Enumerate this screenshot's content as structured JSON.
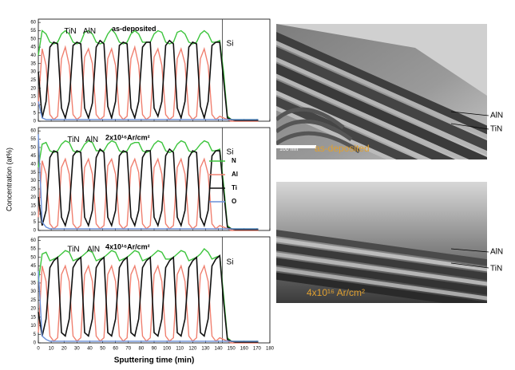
{
  "chart_data": [
    {
      "type": "line",
      "title": "as-deposited",
      "annotations": [
        "TiN",
        "AlN",
        "Si"
      ],
      "x": [
        0,
        3,
        6,
        9,
        12,
        15,
        18,
        21,
        24,
        27,
        30,
        33,
        36,
        39,
        42,
        45,
        48,
        51,
        54,
        57,
        60,
        63,
        66,
        69,
        72,
        75,
        78,
        81,
        84,
        87,
        90,
        93,
        96,
        99,
        102,
        105,
        108,
        111,
        114,
        117,
        120,
        123,
        126,
        129,
        132,
        135,
        138,
        141,
        144,
        147,
        150,
        153,
        156,
        159,
        162,
        165,
        168,
        171
      ],
      "xlim": [
        0,
        180
      ],
      "xticks": [
        0,
        10,
        20,
        30,
        40,
        50,
        60,
        70,
        80,
        90,
        100,
        110,
        120,
        130,
        140,
        150,
        160,
        170,
        180
      ],
      "ylim": [
        0,
        62
      ],
      "yticks": [
        0,
        5,
        10,
        15,
        20,
        25,
        30,
        35,
        40,
        45,
        50,
        55,
        60
      ],
      "series": [
        {
          "name": "N",
          "color": "#3cc43c",
          "values": [
            40,
            55,
            53,
            48,
            47,
            48,
            53,
            55,
            53,
            48,
            47,
            48,
            54,
            55,
            53,
            48,
            47,
            48,
            53,
            56,
            53,
            48,
            47,
            48,
            53,
            55,
            53,
            48,
            48,
            48,
            53,
            55,
            54,
            48,
            47,
            48,
            54,
            55,
            53,
            48,
            47,
            48,
            53,
            55,
            53,
            48,
            48,
            49,
            30,
            3,
            1,
            1,
            1,
            1,
            1,
            1,
            1,
            1
          ]
        },
        {
          "name": "Al",
          "color": "#f08070",
          "values": [
            10,
            44,
            34,
            4,
            1,
            3,
            38,
            45,
            34,
            4,
            1,
            3,
            39,
            44,
            35,
            4,
            1,
            3,
            38,
            44,
            34,
            4,
            1,
            3,
            38,
            45,
            34,
            4,
            1,
            3,
            39,
            44,
            34,
            4,
            1,
            3,
            38,
            44,
            35,
            4,
            1,
            3,
            38,
            44,
            34,
            4,
            1,
            3,
            2,
            1,
            0,
            0,
            0,
            0,
            0,
            0,
            0,
            0
          ]
        },
        {
          "name": "Ti",
          "color": "#111111",
          "values": [
            30,
            2,
            12,
            45,
            48,
            47,
            8,
            2,
            12,
            46,
            48,
            47,
            8,
            2,
            11,
            45,
            49,
            47,
            9,
            2,
            12,
            46,
            48,
            47,
            8,
            2,
            12,
            45,
            48,
            48,
            8,
            3,
            12,
            46,
            49,
            47,
            8,
            2,
            12,
            45,
            48,
            47,
            9,
            2,
            12,
            46,
            48,
            48,
            25,
            2,
            1,
            0.5,
            0.5,
            0.5,
            0.5,
            0.5,
            0.5,
            0.5
          ]
        },
        {
          "name": "O",
          "color": "#6a8fd8",
          "values": [
            12,
            2,
            1,
            1,
            1,
            1,
            1,
            1,
            1,
            1,
            1,
            1,
            1,
            1,
            1,
            1,
            1,
            1,
            1,
            1,
            1,
            1,
            1,
            1,
            1,
            1,
            1,
            1,
            1,
            1,
            1,
            1,
            1,
            1,
            1,
            1,
            1,
            1,
            1,
            1,
            1,
            1,
            1,
            1,
            1,
            1,
            1,
            1,
            1,
            1,
            1,
            1,
            1,
            1,
            1,
            1,
            1,
            1
          ]
        }
      ]
    },
    {
      "type": "line",
      "title": "2x10¹⁶Ar/cm²",
      "annotations": [
        "TiN",
        "AlN",
        "Si"
      ],
      "ylabel": "Concentration (at%)",
      "legend": "right",
      "x": [
        0,
        3,
        6,
        9,
        12,
        15,
        18,
        21,
        24,
        27,
        30,
        33,
        36,
        39,
        42,
        45,
        48,
        51,
        54,
        57,
        60,
        63,
        66,
        69,
        72,
        75,
        78,
        81,
        84,
        87,
        90,
        93,
        96,
        99,
        102,
        105,
        108,
        111,
        114,
        117,
        120,
        123,
        126,
        129,
        132,
        135,
        138,
        141,
        144,
        147,
        150,
        153,
        156,
        159,
        162,
        165,
        168,
        171
      ],
      "xlim": [
        0,
        180
      ],
      "xticks": [
        0,
        10,
        20,
        30,
        40,
        50,
        60,
        70,
        80,
        90,
        100,
        110,
        120,
        130,
        140,
        150,
        160,
        170,
        180
      ],
      "ylim": [
        0,
        62
      ],
      "yticks": [
        0,
        5,
        10,
        15,
        20,
        25,
        30,
        35,
        40,
        45,
        50,
        55,
        60
      ],
      "series": [
        {
          "name": "N",
          "color": "#3cc43c",
          "values": [
            38,
            52,
            53,
            48,
            47,
            48,
            52,
            54,
            53,
            48,
            47,
            48,
            52,
            54,
            53,
            48,
            48,
            48,
            52,
            54,
            53,
            48,
            47,
            48,
            52,
            53,
            53,
            48,
            47,
            48,
            52,
            54,
            53,
            48,
            47,
            48,
            52,
            54,
            53,
            48,
            47,
            49,
            52,
            54,
            53,
            48,
            48,
            49,
            28,
            3,
            1,
            1,
            1,
            1,
            1,
            1,
            1,
            1
          ]
        },
        {
          "name": "Al",
          "color": "#f08070",
          "values": [
            8,
            42,
            34,
            4,
            1,
            3,
            38,
            43,
            34,
            4,
            1,
            3,
            38,
            43,
            34,
            4,
            1,
            3,
            39,
            43,
            34,
            4,
            1,
            3,
            38,
            43,
            35,
            4,
            1,
            3,
            38,
            43,
            34,
            4,
            1,
            3,
            38,
            43,
            34,
            4,
            1,
            3,
            38,
            43,
            34,
            4,
            1,
            3,
            2,
            1,
            0,
            0,
            0,
            0,
            0,
            0,
            0,
            0
          ]
        },
        {
          "name": "Ti",
          "color": "#111111",
          "values": [
            20,
            3,
            12,
            44,
            48,
            47,
            8,
            3,
            12,
            45,
            48,
            47,
            8,
            3,
            12,
            44,
            49,
            47,
            8,
            3,
            12,
            45,
            48,
            47,
            8,
            3,
            12,
            44,
            48,
            48,
            8,
            3,
            12,
            45,
            49,
            47,
            8,
            3,
            12,
            44,
            48,
            47,
            8,
            3,
            12,
            45,
            48,
            48,
            24,
            2,
            1,
            0.5,
            0.5,
            0.5,
            0.5,
            0.5,
            0.5,
            0.5
          ]
        },
        {
          "name": "O",
          "color": "#6a8fd8",
          "values": [
            58,
            5,
            2,
            1,
            1,
            1,
            1,
            1,
            1,
            1,
            1,
            1,
            1,
            1,
            1,
            1,
            1,
            1,
            1,
            1,
            1,
            1,
            1,
            1,
            1,
            1,
            1,
            1,
            1,
            1,
            1,
            1,
            1,
            1,
            1,
            1,
            1,
            1,
            1,
            1,
            1,
            1,
            1,
            1,
            1,
            1,
            1,
            1,
            1,
            1,
            1,
            1,
            1,
            1,
            1,
            1,
            1,
            1
          ]
        }
      ]
    },
    {
      "type": "line",
      "title": "4x10¹⁶Ar/cm²",
      "annotations": [
        "TiN",
        "AlN",
        "Si"
      ],
      "xlabel": "Sputtering time (min)",
      "x": [
        0,
        3,
        6,
        9,
        12,
        15,
        18,
        21,
        24,
        27,
        30,
        33,
        36,
        39,
        42,
        45,
        48,
        51,
        54,
        57,
        60,
        63,
        66,
        69,
        72,
        75,
        78,
        81,
        84,
        87,
        90,
        93,
        96,
        99,
        102,
        105,
        108,
        111,
        114,
        117,
        120,
        123,
        126,
        129,
        132,
        135,
        138,
        141,
        144,
        147,
        150,
        153,
        156,
        159,
        162,
        165,
        168,
        171
      ],
      "xlim": [
        0,
        180
      ],
      "xticks": [
        0,
        10,
        20,
        30,
        40,
        50,
        60,
        70,
        80,
        90,
        100,
        110,
        120,
        130,
        140,
        150,
        160,
        170,
        180
      ],
      "ylim": [
        0,
        62
      ],
      "yticks": [
        0,
        5,
        10,
        15,
        20,
        25,
        30,
        35,
        40,
        45,
        50,
        55,
        60
      ],
      "series": [
        {
          "name": "N",
          "color": "#3cc43c",
          "values": [
            36,
            52,
            53,
            48,
            49,
            50,
            52,
            54,
            53,
            48,
            49,
            50,
            52,
            54,
            53,
            48,
            49,
            50,
            52,
            54,
            53,
            48,
            49,
            50,
            52,
            54,
            53,
            48,
            49,
            50,
            52,
            54,
            53,
            49,
            49,
            50,
            52,
            54,
            53,
            48,
            49,
            50,
            52,
            55,
            53,
            49,
            50,
            51,
            28,
            3,
            1,
            1,
            1,
            1,
            1,
            1,
            1,
            1
          ]
        },
        {
          "name": "Al",
          "color": "#f08070",
          "values": [
            6,
            45,
            36,
            4,
            1,
            3,
            40,
            45,
            36,
            4,
            1,
            3,
            40,
            45,
            36,
            4,
            1,
            3,
            40,
            45,
            36,
            4,
            1,
            3,
            40,
            45,
            36,
            4,
            1,
            3,
            40,
            45,
            36,
            4,
            1,
            3,
            40,
            45,
            36,
            4,
            1,
            3,
            40,
            45,
            36,
            4,
            1,
            3,
            2,
            1,
            0,
            0,
            0,
            0,
            0,
            0,
            0,
            0
          ]
        },
        {
          "name": "Ti",
          "color": "#111111",
          "values": [
            18,
            4,
            14,
            44,
            48,
            50,
            6,
            4,
            14,
            44,
            48,
            50,
            6,
            4,
            14,
            44,
            48,
            50,
            6,
            4,
            14,
            44,
            48,
            50,
            6,
            4,
            14,
            44,
            48,
            50,
            6,
            4,
            14,
            44,
            48,
            50,
            6,
            4,
            14,
            44,
            48,
            50,
            6,
            4,
            14,
            45,
            49,
            51,
            24,
            2,
            1,
            0.5,
            0.5,
            0.5,
            0.5,
            0.5,
            0.5,
            0.5
          ]
        },
        {
          "name": "O",
          "color": "#6a8fd8",
          "values": [
            42,
            4,
            2,
            1,
            1,
            1,
            1,
            1,
            1,
            1,
            1,
            1,
            1,
            1,
            1,
            1,
            1,
            1,
            1,
            1,
            1,
            1,
            1,
            1,
            1,
            1,
            1,
            1,
            1,
            1,
            1,
            1,
            1,
            1,
            1,
            1,
            1,
            1,
            1,
            1,
            1,
            1,
            1,
            1,
            1,
            1,
            1,
            1,
            1,
            1,
            1,
            1,
            1,
            1,
            1,
            1,
            1,
            1
          ]
        }
      ]
    }
  ],
  "images": [
    {
      "labels": [
        "AlN",
        "TiN"
      ],
      "scale": "100 nm",
      "caption": "as-deposited"
    },
    {
      "labels": [
        "AlN",
        "TiN"
      ],
      "caption": "4x10¹⁶ Ar/cm²"
    }
  ]
}
